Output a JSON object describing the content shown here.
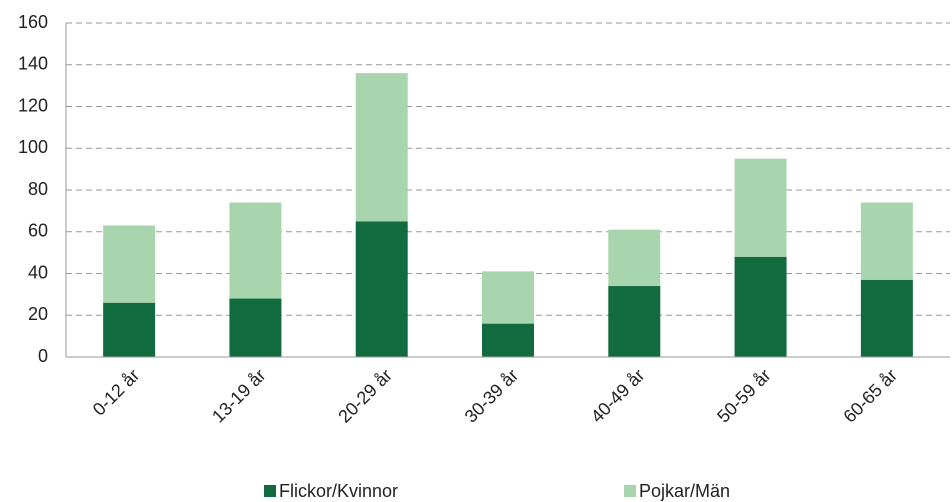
{
  "chart_data": {
    "type": "stacked_bar",
    "categories": [
      "0-12 år",
      "13-19 år",
      "20-29 år",
      "30-39 år",
      "40-49 år",
      "50-59 år",
      "60-65 år"
    ],
    "series": [
      {
        "name": "Flickor/Kvinnor",
        "color": "#126b3f",
        "values": [
          26,
          28,
          65,
          16,
          34,
          48,
          37
        ]
      },
      {
        "name": "Pojkar/Män",
        "color": "#a8d5ae",
        "values": [
          37,
          46,
          71,
          25,
          27,
          47,
          37
        ]
      }
    ],
    "ylim": [
      0,
      160
    ],
    "yticks": [
      0,
      20,
      40,
      60,
      80,
      100,
      120,
      140,
      160
    ],
    "grid": true,
    "legend": "bottom"
  }
}
